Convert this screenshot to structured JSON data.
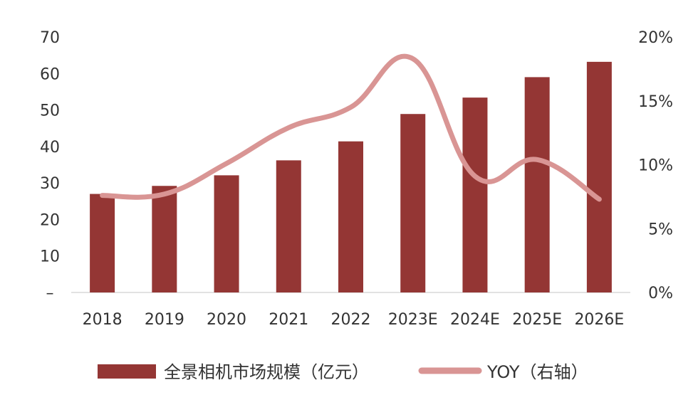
{
  "chart_data": {
    "type": "bar",
    "categories": [
      "2018",
      "2019",
      "2020",
      "2021",
      "2022",
      "2023E",
      "2024E",
      "2025E",
      "2026E"
    ],
    "series": [
      {
        "name": "全景相机市场规模（亿元）",
        "type": "bar",
        "axis": "left",
        "color": "#943634",
        "values": [
          27,
          29.2,
          32.1,
          36.2,
          41.4,
          48.9,
          53.4,
          59.0,
          63.2
        ]
      },
      {
        "name": "YOY（右轴）",
        "type": "line",
        "axis": "right",
        "color": "#d99594",
        "values": [
          7.6,
          7.7,
          10.1,
          12.9,
          14.5,
          18.3,
          9.1,
          10.4,
          7.3
        ]
      }
    ],
    "left_axis": {
      "min": 0,
      "max": 70,
      "ticks": [
        "–",
        "10",
        "20",
        "30",
        "40",
        "50",
        "60",
        "70"
      ]
    },
    "right_axis": {
      "min": 0,
      "max": 20,
      "ticks": [
        "0%",
        "5%",
        "10%",
        "15%",
        "20%"
      ]
    },
    "legend": {
      "placement": "bottom",
      "items": [
        {
          "label": "全景相机市场规模（亿元）",
          "color": "#943634",
          "shape": "bar"
        },
        {
          "label": "YOY（右轴）",
          "color": "#d99594",
          "shape": "line"
        }
      ]
    },
    "grid": false
  }
}
